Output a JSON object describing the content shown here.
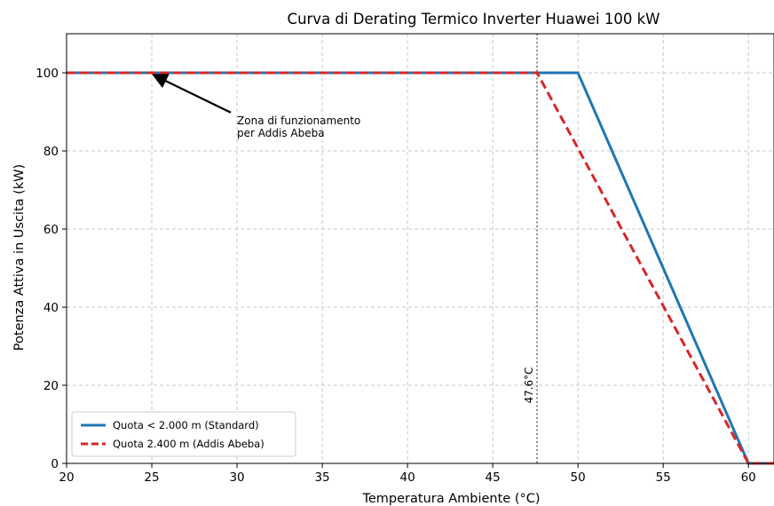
{
  "chart_data": {
    "type": "line",
    "title": "Curva di Derating Termico Inverter Huawei 100 kW",
    "xlabel": "Temperatura Ambiente (°C)",
    "ylabel": "Potenza Attiva in Uscita (kW)",
    "xlim": [
      20,
      61.5
    ],
    "ylim": [
      0,
      110
    ],
    "xticks": [
      20,
      25,
      30,
      35,
      40,
      45,
      50,
      55,
      60
    ],
    "yticks": [
      0,
      20,
      40,
      60,
      80,
      100
    ],
    "grid": true,
    "legend_position": "lower-left",
    "series": [
      {
        "name": "Quota < 2.000 m (Standard)",
        "color": "#1f77b4",
        "style": "solid",
        "x": [
          20,
          50,
          60,
          61.5
        ],
        "y": [
          100,
          100,
          0,
          0
        ]
      },
      {
        "name": "Quota 2.400 m (Addis Abeba)",
        "color": "#d62728",
        "style": "dashed",
        "x": [
          20,
          47.6,
          60,
          61.5
        ],
        "y": [
          100,
          100,
          0,
          0
        ]
      }
    ],
    "annotations": [
      {
        "text_lines": [
          "Zona di funzionamento",
          "per Addis Abeba"
        ],
        "arrow_to": [
          25,
          100
        ],
        "text_at": [
          30,
          88
        ]
      }
    ],
    "vertical_markers": [
      {
        "x": 47.6,
        "label": "47.6°C",
        "style": "dotted",
        "color": "#444444"
      }
    ]
  }
}
